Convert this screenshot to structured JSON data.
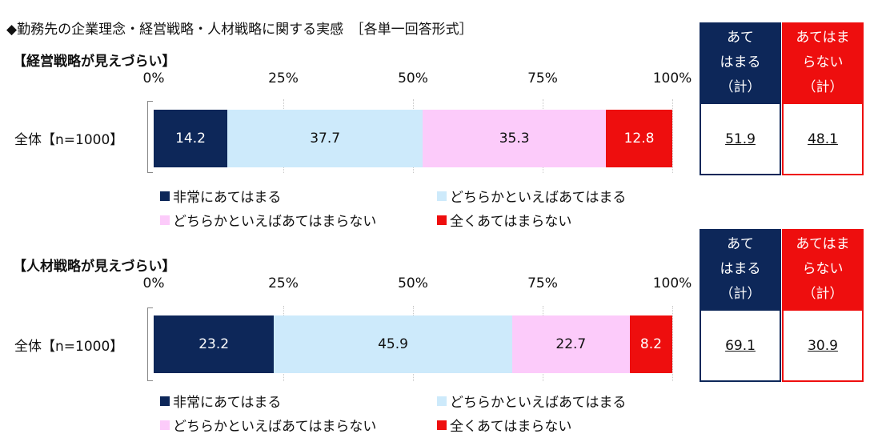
{
  "heading": "◆勤務先の企業理念・経営戦略・人材戦略に関する実感　［各単一回答形式］",
  "colors": {
    "very_applies": "#0d2759",
    "somewhat_applies": "#cdeafb",
    "somewhat_not": "#fccbfa",
    "not_at_all": "#ee0e0e"
  },
  "legend": [
    "非常にあてはまる",
    "どちらかといえばあてはまる",
    "どちらかといえばあてはまらない",
    "全くあてはまらない"
  ],
  "summary_headers": {
    "applies": [
      "あて",
      "はまる",
      "（計）"
    ],
    "not_applies": [
      "あてはま",
      "らない",
      "（計）"
    ]
  },
  "chart_data": [
    {
      "type": "bar",
      "orientation": "horizontal-stacked-100",
      "title": "【経営戦略が見えづらい】",
      "categories": [
        "全体【n=1000】"
      ],
      "xlim": [
        0,
        100
      ],
      "ticks": [
        "0%",
        "25%",
        "50%",
        "75%",
        "100%"
      ],
      "series": [
        {
          "name": "非常にあてはまる",
          "values": [
            14.2
          ]
        },
        {
          "name": "どちらかといえばあてはまる",
          "values": [
            37.7
          ]
        },
        {
          "name": "どちらかといえばあてはまらない",
          "values": [
            35.3
          ]
        },
        {
          "name": "全くあてはまらない",
          "values": [
            12.8
          ]
        }
      ],
      "summary": {
        "applies": "51.9",
        "not_applies": "48.1"
      },
      "grid": true,
      "legend_position": "bottom"
    },
    {
      "type": "bar",
      "orientation": "horizontal-stacked-100",
      "title": "【人材戦略が見えづらい】",
      "categories": [
        "全体【n=1000】"
      ],
      "xlim": [
        0,
        100
      ],
      "ticks": [
        "0%",
        "25%",
        "50%",
        "75%",
        "100%"
      ],
      "series": [
        {
          "name": "非常にあてはまる",
          "values": [
            23.2
          ]
        },
        {
          "name": "どちらかといえばあてはまる",
          "values": [
            45.9
          ]
        },
        {
          "name": "どちらかといえばあてはまらない",
          "values": [
            22.7
          ]
        },
        {
          "name": "全くあてはまらない",
          "values": [
            8.2
          ]
        }
      ],
      "summary": {
        "applies": "69.1",
        "not_applies": "30.9"
      },
      "grid": true,
      "legend_position": "bottom"
    }
  ]
}
